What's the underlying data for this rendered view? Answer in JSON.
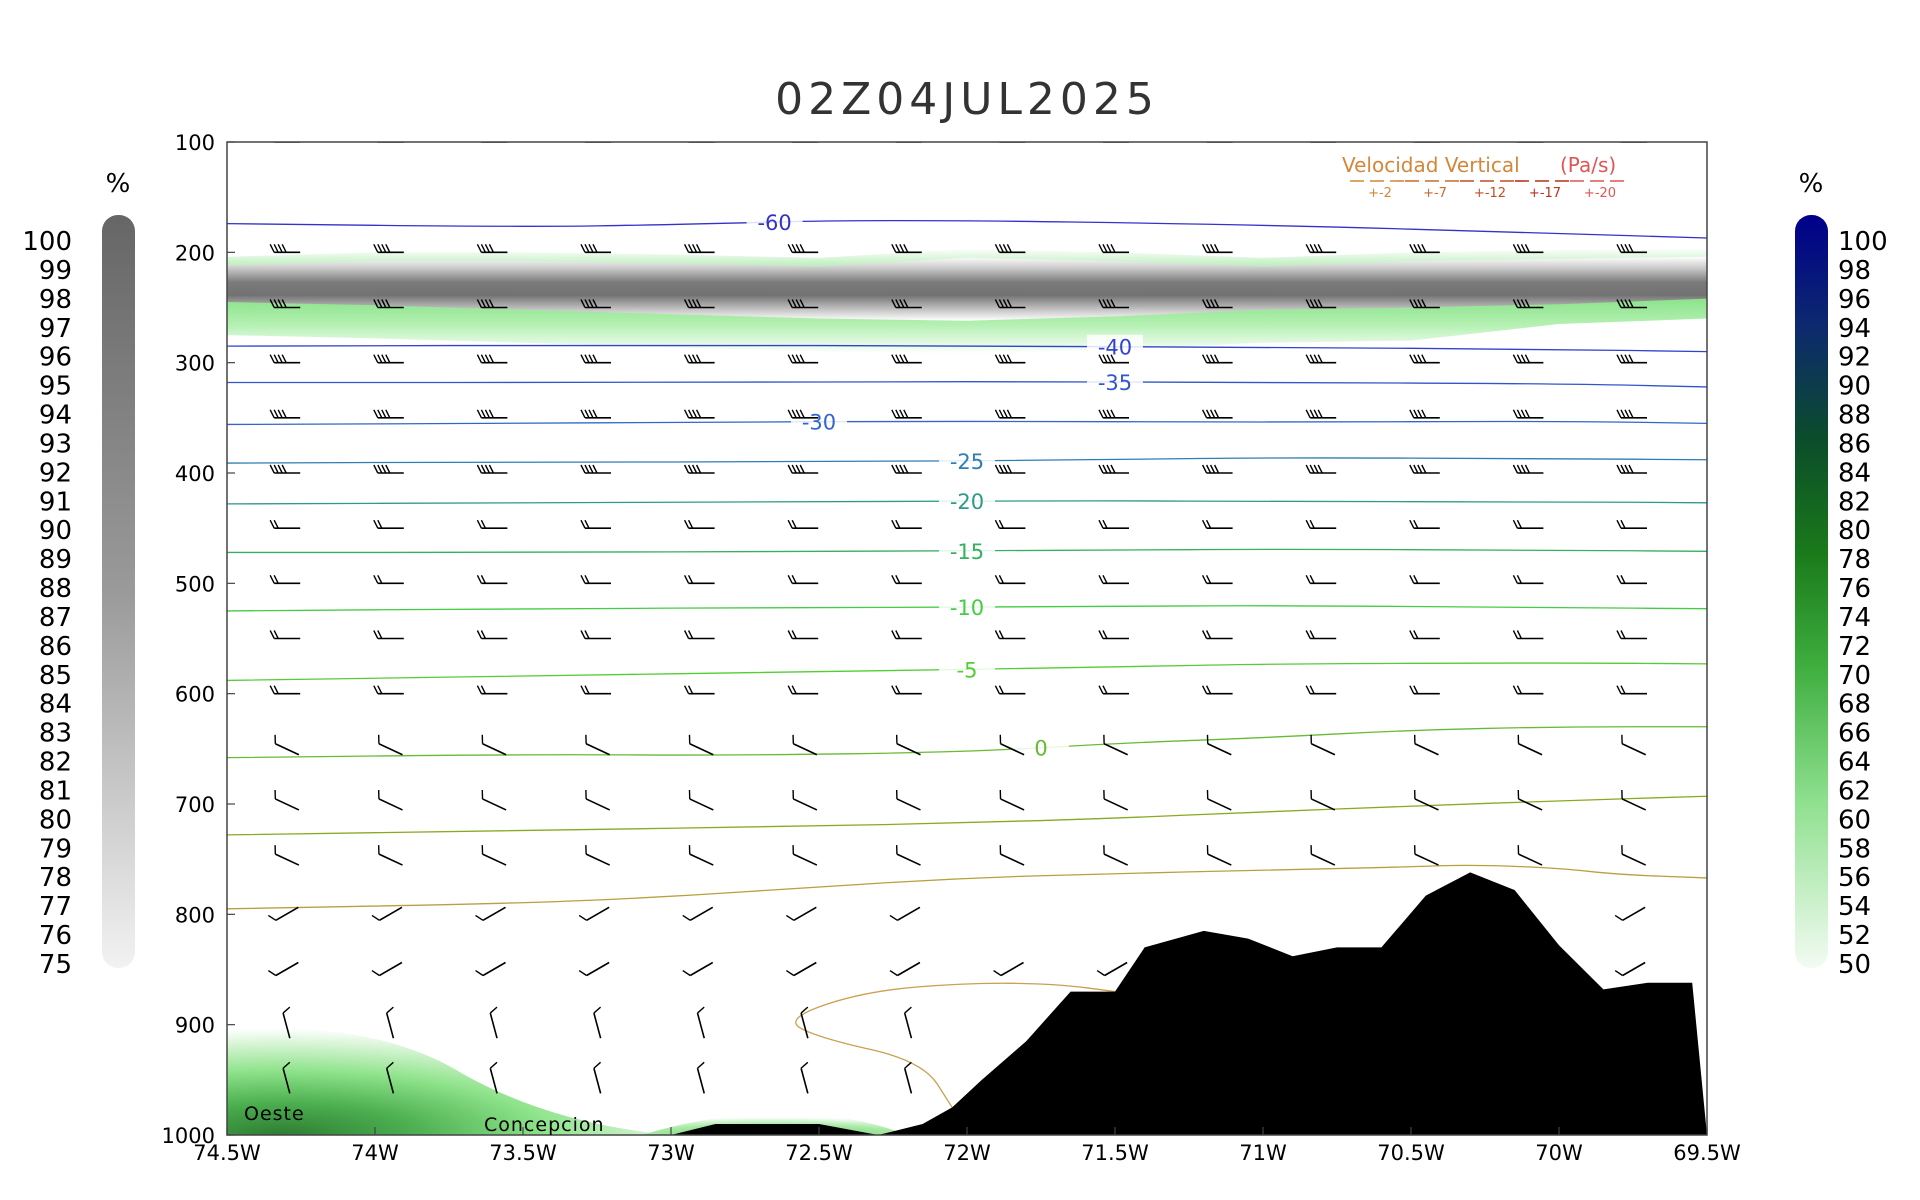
{
  "chart_data": {
    "type": "cross-section",
    "title": "02Z04JUL2025",
    "x_axis": {
      "range": [
        -74.5,
        -69.5
      ],
      "tick_values": [
        -74.5,
        -74,
        -73.5,
        -73,
        -72.5,
        -72,
        -71.5,
        -71,
        -70.5,
        -70,
        -69.5
      ],
      "tick_labels": [
        "74.5W",
        "74W",
        "73.5W",
        "73W",
        "72.5W",
        "72W",
        "71.5W",
        "71W",
        "70.5W",
        "70W",
        "69.5W"
      ]
    },
    "y_axis": {
      "range": [
        1000,
        100
      ],
      "scale": "linear-pressure",
      "tick_values": [
        100,
        200,
        300,
        400,
        500,
        600,
        700,
        800,
        900,
        1000
      ],
      "tick_labels": [
        "100",
        "200",
        "300",
        "400",
        "500",
        "600",
        "700",
        "800",
        "900",
        "1000"
      ]
    },
    "colorbars": [
      {
        "side": "left",
        "unit": "%",
        "colormap": "gray",
        "labels": [
          "100",
          "99",
          "98",
          "97",
          "96",
          "95",
          "94",
          "93",
          "92",
          "91",
          "90",
          "89",
          "88",
          "87",
          "86",
          "85",
          "84",
          "83",
          "82",
          "81",
          "80",
          "79",
          "78",
          "77",
          "76",
          "75"
        ]
      },
      {
        "side": "right",
        "unit": "%",
        "colormap": "green-to-navy",
        "labels": [
          "100",
          "98",
          "96",
          "94",
          "92",
          "90",
          "88",
          "86",
          "84",
          "82",
          "80",
          "78",
          "76",
          "74",
          "72",
          "70",
          "68",
          "66",
          "64",
          "62",
          "60",
          "58",
          "56",
          "54",
          "52",
          "50"
        ]
      }
    ],
    "legend": {
      "placement": "top-right",
      "title": "Velocidad Vertical",
      "unit": "(Pa/s)",
      "entries": [
        "+-2",
        "+-7",
        "+-12",
        "+-17",
        "+-20"
      ],
      "colors": [
        "#d4873a",
        "#cc6a2a",
        "#c24e22",
        "#b8321c",
        "#e05555"
      ]
    },
    "temperature_contours": [
      {
        "level": -60,
        "label": "-60",
        "color": "#3333cc",
        "x": [
          -74.5,
          -73.5,
          -73,
          -72.3,
          -71,
          -70,
          -69.5
        ],
        "p": [
          174,
          177,
          175,
          170,
          175,
          183,
          187
        ]
      },
      {
        "level": -40,
        "label": "-40",
        "color": "#3344cc",
        "x": [
          -74.5,
          -73,
          -72,
          -71,
          -70,
          -69.5
        ],
        "p": [
          285,
          284,
          285,
          286,
          288,
          290
        ]
      },
      {
        "level": -35,
        "label": "-35",
        "color": "#3355cc",
        "x": [
          -74.5,
          -73,
          -72,
          -71,
          -70,
          -69.5
        ],
        "p": [
          318,
          318,
          317,
          318,
          319,
          322
        ]
      },
      {
        "level": -30,
        "label": "-30",
        "color": "#3366cc",
        "x": [
          -74.5,
          -73.5,
          -73,
          -72,
          -71,
          -70,
          -69.5
        ],
        "p": [
          356,
          355,
          354,
          353,
          354,
          353,
          355
        ]
      },
      {
        "level": -25,
        "label": "-25",
        "color": "#2e7db5",
        "x": [
          -74.5,
          -73.5,
          -72.5,
          -71.5,
          -71,
          -70,
          -69.5
        ],
        "p": [
          391,
          390,
          390,
          388,
          386,
          387,
          388
        ]
      },
      {
        "level": -20,
        "label": "-20",
        "color": "#2e9a88",
        "x": [
          -74.5,
          -73.5,
          -72.5,
          -71.5,
          -71,
          -70,
          -69.5
        ],
        "p": [
          428,
          427,
          426,
          425,
          426,
          426,
          427
        ]
      },
      {
        "level": -15,
        "label": "-15",
        "color": "#35b060",
        "x": [
          -74.5,
          -73.5,
          -72.5,
          -71.5,
          -71,
          -70,
          -69.5
        ],
        "p": [
          472,
          472,
          471,
          470,
          469,
          470,
          471
        ]
      },
      {
        "level": -10,
        "label": "-10",
        "color": "#44cc44",
        "x": [
          -74.5,
          -73.5,
          -72.5,
          -71.5,
          -71,
          -70,
          -69.5
        ],
        "p": [
          525,
          523,
          522,
          521,
          520,
          522,
          523
        ]
      },
      {
        "level": -5,
        "label": "-5",
        "color": "#55cc33",
        "x": [
          -74.5,
          -73.5,
          -72.5,
          -71.5,
          -71,
          -70,
          -69.5
        ],
        "p": [
          588,
          584,
          580,
          576,
          573,
          572,
          573
        ]
      },
      {
        "level": 0,
        "label": "0",
        "color": "#66bb33",
        "x": [
          -74.5,
          -73.5,
          -72.8,
          -72,
          -71.5,
          -71,
          -70.5,
          -70,
          -69.5
        ],
        "p": [
          658,
          655,
          656,
          653,
          645,
          640,
          633,
          630,
          630
        ]
      },
      {
        "level": 5,
        "label": "",
        "color": "#88aa22",
        "x": [
          -74.5,
          -73.5,
          -72.5,
          -72,
          -71.5,
          -71,
          -70.5,
          -70,
          -69.5
        ],
        "p": [
          728,
          724,
          720,
          717,
          713,
          707,
          702,
          697,
          693
        ]
      },
      {
        "level": 10,
        "label": "",
        "color": "#b8a040",
        "x": [
          -74.5,
          -73.5,
          -73,
          -72.5,
          -72,
          -71.5,
          -71,
          -70.5,
          -70.3,
          -70,
          -69.8,
          -69.5
        ],
        "p": [
          795,
          790,
          784,
          775,
          767,
          763,
          760,
          757,
          755,
          758,
          764,
          767
        ]
      },
      {
        "level": 15,
        "label": "",
        "color": "#c9a050",
        "x": [
          -72.05,
          -72.15,
          -72.5,
          -72.62,
          -72.35,
          -72.0,
          -71.7,
          -71.5
        ],
        "p": [
          975,
          933,
          912,
          895,
          870,
          862,
          863,
          870
        ]
      }
    ],
    "cloud_band_top_percent": {
      "x": [
        -74.5,
        -74,
        -73.5,
        -73,
        -72.5,
        -72,
        -71.5,
        -71,
        -70.5,
        -70,
        -69.5
      ],
      "top": [
        212,
        208,
        208,
        210,
        213,
        205,
        208,
        213,
        208,
        206,
        204
      ],
      "bottom": [
        245,
        248,
        252,
        256,
        260,
        262,
        258,
        252,
        250,
        247,
        242
      ]
    },
    "terrain_profile": {
      "x": [
        -73.0,
        -72.85,
        -72.5,
        -72.3,
        -72.15,
        -72.05,
        -71.95,
        -71.8,
        -71.65,
        -71.5,
        -71.4,
        -71.2,
        -71.05,
        -70.9,
        -70.75,
        -70.6,
        -70.45,
        -70.3,
        -70.15,
        -70.0,
        -69.85,
        -69.7,
        -69.55,
        -69.5
      ],
      "surface_p": [
        1000,
        990,
        990,
        1000,
        990,
        975,
        950,
        915,
        870,
        870,
        830,
        815,
        822,
        838,
        830,
        830,
        783,
        762,
        778,
        828,
        868,
        862,
        862,
        1000
      ]
    },
    "place_labels": [
      "Oeste",
      "Concepcion"
    ]
  }
}
